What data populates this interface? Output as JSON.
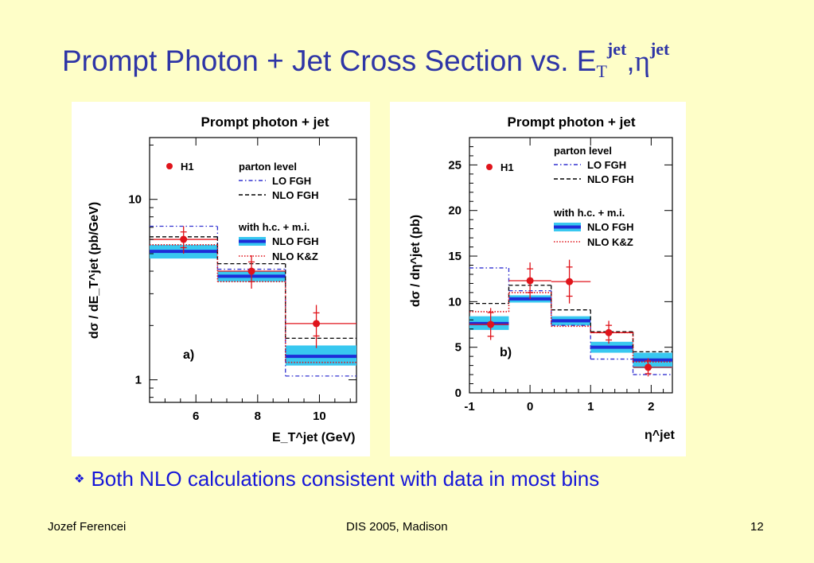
{
  "slide": {
    "title_main": "Prompt Photon + Jet Cross Section vs. E",
    "title_sub": "T",
    "title_sup1": "jet",
    "title_sep": ",",
    "title_eta": "η",
    "title_sup2": "jet",
    "bullet_icon": "diamond-bullet-icon",
    "bullet": "Both NLO calculations consistent with data in most bins",
    "footer_author": "Jozef Ferencei",
    "footer_conference": "DIS 2005, Madison",
    "footer_page": "12"
  },
  "colors": {
    "background": "#fefec8",
    "title": "#2e35a6",
    "bullet": "#1717d9",
    "data": "#e0141b",
    "band_outer": "#38c8f0",
    "band_inner": "#1e2cd8",
    "lo": "#3030d0",
    "nlo": "#000000",
    "kz": "#e0141b"
  },
  "chart_data": [
    {
      "type": "line",
      "title": "Prompt photon + jet",
      "xlabel": "E_T^jet (GeV)",
      "ylabel": "dσ / dE_T^jet (pb/GeV)",
      "panel_label": "a)",
      "y_scale": "log",
      "xlim": [
        4.5,
        11.2
      ],
      "ylim": [
        0.75,
        22
      ],
      "x_ticks": [
        "6",
        "8",
        "10"
      ],
      "y_ticks": [
        "1",
        "10"
      ],
      "grid": false,
      "legend_position": "top-right",
      "legend": {
        "data_label": "H1",
        "group1_header": "parton level",
        "group1": [
          "LO FGH",
          "NLO FGH"
        ],
        "group2_header": "with h.c. + m.i.",
        "group2": [
          "NLO FGH",
          "NLO K&Z"
        ]
      },
      "bins": [
        [
          4.5,
          6.7
        ],
        [
          6.7,
          8.9
        ],
        [
          8.9,
          11.2
        ]
      ],
      "data_points": [
        {
          "x": 5.6,
          "y": 6.0,
          "stat_lo": 5.4,
          "stat_hi": 6.6,
          "tot_lo": 5.0,
          "tot_hi": 7.1
        },
        {
          "x": 7.8,
          "y": 4.0,
          "stat_lo": 3.5,
          "stat_hi": 4.5,
          "tot_lo": 3.2,
          "tot_hi": 4.9
        },
        {
          "x": 9.9,
          "y": 2.05,
          "stat_lo": 1.75,
          "stat_hi": 2.35,
          "tot_lo": 1.5,
          "tot_hi": 2.6
        }
      ],
      "lo_fgh": [
        7.1,
        4.1,
        1.05
      ],
      "nlo_fgh_parton": [
        6.2,
        4.4,
        1.7
      ],
      "nlo_fgh_band": [
        [
          4.7,
          5.6
        ],
        [
          3.5,
          4.0
        ],
        [
          1.2,
          1.55
        ]
      ],
      "nlo_fgh_band_center": [
        5.15,
        3.75,
        1.35
      ],
      "nlo_kz": [
        5.6,
        3.5,
        1.25
      ]
    },
    {
      "type": "line",
      "title": "Prompt photon + jet",
      "xlabel": "η^jet",
      "ylabel": "dσ / dη^jet (pb)",
      "panel_label": "b)",
      "xlim": [
        -1.0,
        2.35
      ],
      "ylim": [
        0,
        28
      ],
      "x_ticks": [
        "-1",
        "0",
        "1",
        "2"
      ],
      "y_ticks": [
        "0",
        "5",
        "10",
        "15",
        "20",
        "25"
      ],
      "grid": false,
      "legend_position": "top-right",
      "legend": {
        "data_label": "H1",
        "group1_header": "parton level",
        "group1": [
          "LO FGH",
          "NLO FGH"
        ],
        "group2_header": "with h.c. + m.i.",
        "group2": [
          "NLO FGH",
          "NLO K&Z"
        ]
      },
      "bins": [
        [
          -1.0,
          -0.35
        ],
        [
          -0.35,
          0.35
        ],
        [
          0.35,
          1.0
        ],
        [
          1.0,
          1.7
        ],
        [
          1.7,
          2.35
        ]
      ],
      "data_points": [
        {
          "x": -0.65,
          "y": 7.5,
          "stat_lo": 6.2,
          "stat_hi": 8.8,
          "tot_lo": 5.8,
          "tot_hi": 9.3
        },
        {
          "x": 0.0,
          "y": 12.3,
          "stat_lo": 11.0,
          "stat_hi": 13.6,
          "tot_lo": 10.3,
          "tot_hi": 14.3
        },
        {
          "x": 0.65,
          "y": 12.2,
          "stat_lo": 10.6,
          "stat_hi": 13.8,
          "tot_lo": 9.8,
          "tot_hi": 14.6
        },
        {
          "x": 1.3,
          "y": 6.6,
          "stat_lo": 5.8,
          "stat_hi": 7.4,
          "tot_lo": 5.4,
          "tot_hi": 7.9
        },
        {
          "x": 1.95,
          "y": 2.8,
          "stat_lo": 2.1,
          "stat_hi": 3.5,
          "tot_lo": 1.8,
          "tot_hi": 3.8
        }
      ],
      "lo_fgh": [
        13.7,
        11.2,
        7.4,
        3.7,
        2.0
      ],
      "nlo_fgh_parton": [
        9.8,
        11.8,
        9.1,
        6.7,
        4.5
      ],
      "nlo_fgh_band": [
        [
          6.9,
          8.4
        ],
        [
          9.9,
          10.7
        ],
        [
          7.4,
          8.4
        ],
        [
          4.4,
          5.6
        ],
        [
          2.7,
          4.4
        ]
      ],
      "nlo_fgh_band_center": [
        7.6,
        10.3,
        7.9,
        5.0,
        3.6
      ],
      "nlo_kz": [
        8.9,
        11.0,
        7.3,
        6.6,
        3.4
      ]
    }
  ]
}
